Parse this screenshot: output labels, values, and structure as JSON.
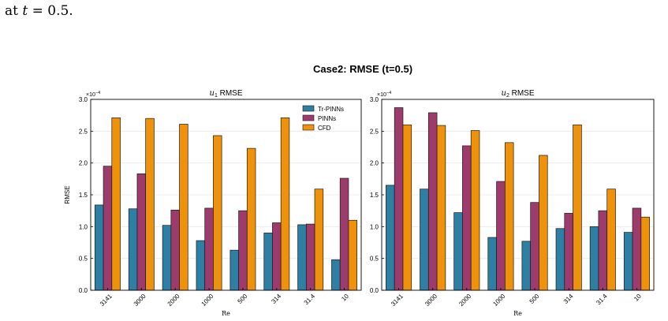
{
  "caption_fragment": {
    "prefix": "at",
    "var": "t",
    "rest": " = 0.5."
  },
  "suptitle": "Case2: RMSE (t=0.5)",
  "colors": {
    "Tr-PINNs": "#2e7fa4",
    "PINNs": "#9d3b6c",
    "CFD": "#ef920b"
  },
  "chart_data": [
    {
      "type": "bar",
      "title_sub": "1",
      "title_rest": " RMSE",
      "xlabel": "Re",
      "ylabel": "RMSE",
      "exponent_prefix": "×10",
      "exponent": "−4",
      "ylim": [
        0,
        3.0
      ],
      "yticks": [
        "0.0",
        "0.5",
        "1.0",
        "1.5",
        "2.0",
        "2.5",
        "3.0"
      ],
      "grid": true,
      "legend": "top-right",
      "categories": [
        "3141",
        "3000",
        "2000",
        "1000",
        "500",
        "314",
        "31.4",
        "10"
      ],
      "series": [
        {
          "name": "Tr-PINNs",
          "values": [
            1.34,
            1.28,
            1.02,
            0.78,
            0.63,
            0.9,
            1.03,
            0.48
          ]
        },
        {
          "name": "PINNs",
          "values": [
            1.95,
            1.83,
            1.26,
            1.29,
            1.25,
            1.06,
            1.04,
            1.76
          ]
        },
        {
          "name": "CFD",
          "values": [
            2.71,
            2.7,
            2.61,
            2.43,
            2.23,
            2.71,
            1.59,
            1.1
          ]
        }
      ]
    },
    {
      "type": "bar",
      "title_sub": "2",
      "title_rest": " RMSE",
      "xlabel": "Re",
      "ylabel": "",
      "exponent_prefix": "×10",
      "exponent": "−4",
      "ylim": [
        0,
        3.0
      ],
      "yticks": [
        "0.0",
        "0.5",
        "1.0",
        "1.5",
        "2.0",
        "2.5",
        "3.0"
      ],
      "grid": true,
      "legend": "none",
      "categories": [
        "3141",
        "3000",
        "2000",
        "1000",
        "500",
        "314",
        "31.4",
        "10"
      ],
      "series": [
        {
          "name": "Tr-PINNs",
          "values": [
            1.65,
            1.59,
            1.22,
            0.83,
            0.77,
            0.97,
            1.0,
            0.91
          ]
        },
        {
          "name": "PINNs",
          "values": [
            2.87,
            2.79,
            2.27,
            1.71,
            1.38,
            1.21,
            1.25,
            1.29
          ]
        },
        {
          "name": "CFD",
          "values": [
            2.6,
            2.59,
            2.51,
            2.32,
            2.12,
            2.6,
            1.59,
            1.15
          ]
        }
      ]
    }
  ]
}
